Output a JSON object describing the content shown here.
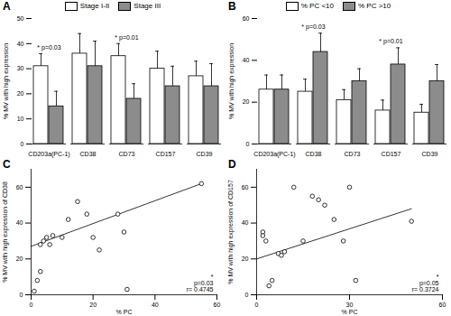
{
  "chart_data": [
    {
      "panel_label": "A",
      "type": "bar",
      "categories": [
        "CD203a(PC-1)",
        "CD38",
        "CD73",
        "CD157",
        "CD39"
      ],
      "series": [
        {
          "name": "Stage I-II",
          "color": "#ffffff",
          "values": [
            31,
            36,
            35,
            30,
            27
          ],
          "errors": [
            5,
            8,
            5,
            7,
            6
          ]
        },
        {
          "name": "Stage III",
          "color": "#8c8c8c",
          "values": [
            15,
            31,
            18,
            23,
            23
          ],
          "errors": [
            6,
            10,
            6,
            8,
            9
          ]
        }
      ],
      "ylabel": "% MV with high expression",
      "ylim": [
        0,
        50
      ],
      "yticks": [
        0,
        10,
        20,
        30,
        40,
        50
      ],
      "legend": "top",
      "annotations": [
        {
          "category": "CD203a(PC-1)",
          "text": "* p=0.03"
        },
        {
          "category": "CD73",
          "text": "* p=0.01"
        }
      ]
    },
    {
      "panel_label": "B",
      "type": "bar",
      "categories": [
        "CD203a(PC-1)",
        "CD38",
        "CD73",
        "CD157",
        "CD39"
      ],
      "series": [
        {
          "name": "% PC <10",
          "color": "#ffffff",
          "values": [
            26,
            25,
            21,
            16,
            15
          ],
          "errors": [
            7,
            6,
            5,
            5,
            4
          ]
        },
        {
          "name": "% PC >10",
          "color": "#8c8c8c",
          "values": [
            26,
            44,
            30,
            38,
            30
          ],
          "errors": [
            7,
            9,
            6,
            8,
            8
          ]
        }
      ],
      "ylabel": "% MV with high expression",
      "ylim": [
        0,
        60
      ],
      "yticks": [
        0,
        20,
        40,
        60
      ],
      "legend": "top",
      "annotations": [
        {
          "category": "CD38",
          "text": "* p=0.03"
        },
        {
          "category": "CD157",
          "text": "* p=0.01"
        }
      ]
    },
    {
      "panel_label": "C",
      "type": "scatter",
      "x": [
        1,
        2,
        3,
        3,
        4,
        5,
        6,
        7,
        10,
        12,
        15,
        18,
        20,
        22,
        28,
        30,
        31,
        55
      ],
      "y": [
        2,
        8,
        13,
        28,
        30,
        32,
        28,
        33,
        32,
        42,
        52,
        45,
        32,
        25,
        45,
        35,
        3,
        62
      ],
      "xlabel": "% PC",
      "ylabel": "% MV with high expression of CD38",
      "xlim": [
        0,
        60
      ],
      "xticks": [
        0,
        20,
        40,
        60
      ],
      "ylim": [
        0,
        70
      ],
      "yticks": [
        0,
        20,
        40,
        60
      ],
      "marker": "circle",
      "fit": {
        "x": [
          0,
          55
        ],
        "y": [
          27,
          62
        ]
      },
      "annotations": [
        "*",
        "p=0.03",
        "r= 0.4745"
      ]
    },
    {
      "panel_label": "D",
      "type": "scatter",
      "x": [
        2,
        2,
        3,
        4,
        5,
        7,
        8,
        9,
        12,
        15,
        18,
        20,
        22,
        25,
        28,
        30,
        32,
        50
      ],
      "y": [
        35,
        33,
        30,
        5,
        8,
        23,
        22,
        24,
        60,
        30,
        55,
        53,
        50,
        42,
        30,
        60,
        8,
        41
      ],
      "xlabel": "% PC",
      "ylabel": "% MV with high expression of CD157",
      "xlim": [
        0,
        60
      ],
      "xticks": [
        0,
        30,
        60
      ],
      "ylim": [
        0,
        70
      ],
      "yticks": [
        0,
        20,
        40,
        60
      ],
      "marker": "circle",
      "fit": {
        "x": [
          0,
          50
        ],
        "y": [
          20,
          48
        ]
      },
      "annotations": [
        "*",
        "p=0.05",
        "r= 0.3724"
      ]
    }
  ]
}
